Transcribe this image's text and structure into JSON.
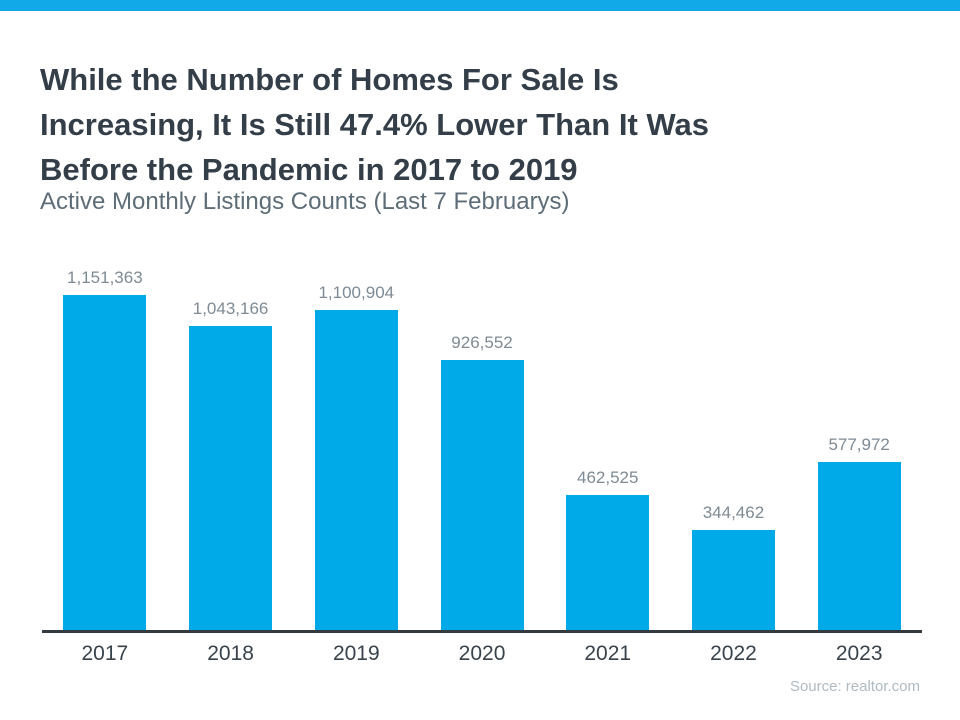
{
  "page": {
    "background_color": "#FFFFFF",
    "accent_bar_color": "#12A9E9"
  },
  "header": {
    "title": "While the Number of Homes For Sale Is Increasing, It Is Still 47.4% Lower Than It Was Before the Pandemic in 2017 to 2019",
    "title_lines": [
      "While the Number of Homes For Sale Is",
      "Increasing, It Is Still 47.4% Lower Than It Was",
      "Before the Pandemic in 2017 to 2019"
    ],
    "subtitle": "Active Monthly Listings Counts (Last 7 Februarys)"
  },
  "chart_data": {
    "type": "bar",
    "title": "Active Monthly Listings Counts (Last 7 Februarys)",
    "categories": [
      "2017",
      "2018",
      "2019",
      "2020",
      "2021",
      "2022",
      "2023"
    ],
    "values": [
      1151363,
      1043166,
      1100904,
      926552,
      462525,
      344462,
      577972
    ],
    "value_labels": [
      "1,151,363",
      "1,043,166",
      "1,100,904",
      "926,552",
      "462,525",
      "344,462",
      "577,972"
    ],
    "xlabel": "",
    "ylabel": "",
    "ylim": [
      0,
      1200000
    ],
    "grid": false,
    "legend_position": "none",
    "bar_color": "#00A9E8",
    "value_label_color": "#7E8A94",
    "axis_color": "#333A40",
    "year_label_color": "#39434C"
  },
  "footer": {
    "source": "Source: realtor.com"
  }
}
